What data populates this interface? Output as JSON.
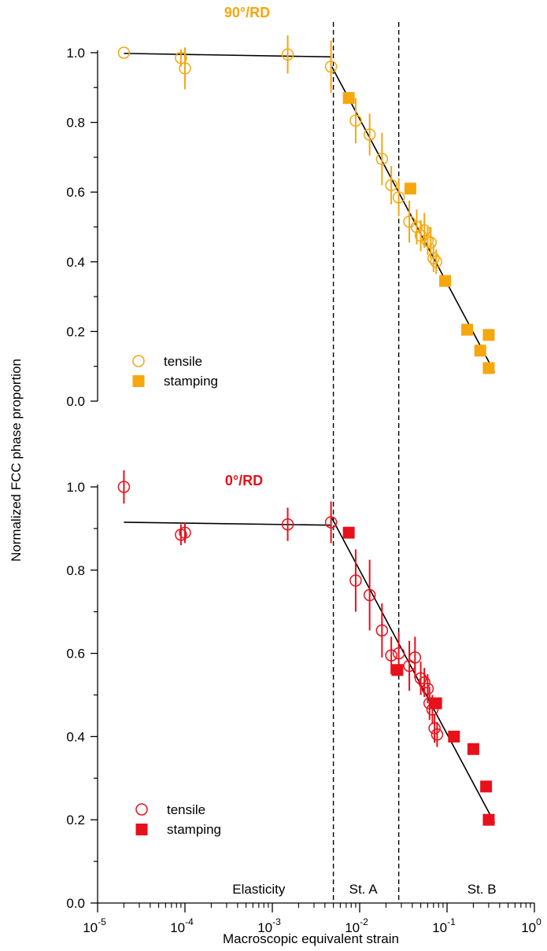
{
  "figure": {
    "ylabel": "Normalized FCC phase proportion",
    "xlabel": "Macroscopic equivalent strain",
    "x_scale": "log",
    "xlim": [
      1e-05,
      1
    ],
    "x_tick_labels": [
      {
        "base": "10",
        "exp": "-5"
      },
      {
        "base": "10",
        "exp": "-4"
      },
      {
        "base": "10",
        "exp": "-3"
      },
      {
        "base": "10",
        "exp": "-2"
      },
      {
        "base": "10",
        "exp": "-1"
      },
      {
        "base": "10",
        "exp": "0"
      }
    ],
    "y_tick_labels": [
      "0.0",
      "0.2",
      "0.4",
      "0.6",
      "0.8",
      "1.0"
    ],
    "vlines": [
      0.005,
      0.028
    ],
    "regions": [
      {
        "label": "Elasticity",
        "x": 0.0007
      },
      {
        "label": "St. A",
        "x": 0.011
      },
      {
        "label": "St. B",
        "x": 0.25
      }
    ],
    "colors": {
      "orange": "#f5a70e",
      "red": "#e8101a",
      "fit": "#000000"
    }
  },
  "chart_data": [
    {
      "type": "scatter",
      "title": "90°/RD",
      "title_color": "#f5a70e",
      "ylim": [
        0,
        1.0
      ],
      "grid": false,
      "legend_position": "lower-left",
      "series": [
        {
          "name": "tensile",
          "marker": "open-circle",
          "color": "#f5a70e",
          "points": [
            {
              "x": 2e-05,
              "y": 1.0,
              "err": 0.0
            },
            {
              "x": 9e-05,
              "y": 0.985,
              "err": 0.025
            },
            {
              "x": 0.0001,
              "y": 0.955,
              "err": 0.06
            },
            {
              "x": 0.0015,
              "y": 0.995,
              "err": 0.055
            },
            {
              "x": 0.0047,
              "y": 0.96,
              "err": 0.075
            },
            {
              "x": 0.009,
              "y": 0.805,
              "err": 0.065
            },
            {
              "x": 0.013,
              "y": 0.765,
              "err": 0.06
            },
            {
              "x": 0.018,
              "y": 0.695,
              "err": 0.075
            },
            {
              "x": 0.023,
              "y": 0.62,
              "err": 0.055
            },
            {
              "x": 0.028,
              "y": 0.585,
              "err": 0.055
            },
            {
              "x": 0.037,
              "y": 0.515,
              "err": 0.06
            },
            {
              "x": 0.045,
              "y": 0.5,
              "err": 0.05
            },
            {
              "x": 0.05,
              "y": 0.475,
              "err": 0.045
            },
            {
              "x": 0.055,
              "y": 0.49,
              "err": 0.05
            },
            {
              "x": 0.06,
              "y": 0.46,
              "err": 0.04
            },
            {
              "x": 0.065,
              "y": 0.455,
              "err": 0.045
            },
            {
              "x": 0.07,
              "y": 0.41,
              "err": 0.04
            },
            {
              "x": 0.075,
              "y": 0.4,
              "err": 0.035
            }
          ]
        },
        {
          "name": "stamping",
          "marker": "filled-square",
          "color": "#f5a70e",
          "points": [
            {
              "x": 0.0075,
              "y": 0.87
            },
            {
              "x": 0.038,
              "y": 0.61
            },
            {
              "x": 0.095,
              "y": 0.345
            },
            {
              "x": 0.17,
              "y": 0.205
            },
            {
              "x": 0.24,
              "y": 0.145
            },
            {
              "x": 0.3,
              "y": 0.19
            },
            {
              "x": 0.3,
              "y": 0.095
            }
          ]
        }
      ],
      "fit_lines": [
        [
          [
            2e-05,
            0.998
          ],
          [
            0.0048,
            0.988
          ]
        ],
        [
          [
            0.0048,
            0.96
          ],
          [
            0.35,
            0.082
          ]
        ]
      ]
    },
    {
      "type": "scatter",
      "title": "0°/RD",
      "title_color": "#e8101a",
      "ylim": [
        0,
        1.0
      ],
      "grid": false,
      "legend_position": "lower-left",
      "series": [
        {
          "name": "tensile",
          "marker": "open-circle",
          "color": "#e8101a",
          "points": [
            {
              "x": 2e-05,
              "y": 1.0,
              "err": 0.04
            },
            {
              "x": 9e-05,
              "y": 0.885,
              "err": 0.025
            },
            {
              "x": 0.0001,
              "y": 0.89,
              "err": 0.025
            },
            {
              "x": 0.0015,
              "y": 0.91,
              "err": 0.04
            },
            {
              "x": 0.0047,
              "y": 0.915,
              "err": 0.05
            },
            {
              "x": 0.009,
              "y": 0.775,
              "err": 0.075
            },
            {
              "x": 0.013,
              "y": 0.74,
              "err": 0.085
            },
            {
              "x": 0.018,
              "y": 0.655,
              "err": 0.065
            },
            {
              "x": 0.023,
              "y": 0.595,
              "err": 0.045
            },
            {
              "x": 0.028,
              "y": 0.6,
              "err": 0.05
            },
            {
              "x": 0.037,
              "y": 0.57,
              "err": 0.06
            },
            {
              "x": 0.043,
              "y": 0.59,
              "err": 0.05
            },
            {
              "x": 0.05,
              "y": 0.54,
              "err": 0.04
            },
            {
              "x": 0.055,
              "y": 0.53,
              "err": 0.035
            },
            {
              "x": 0.06,
              "y": 0.515,
              "err": 0.035
            },
            {
              "x": 0.063,
              "y": 0.48,
              "err": 0.04
            },
            {
              "x": 0.068,
              "y": 0.465,
              "err": 0.035
            },
            {
              "x": 0.072,
              "y": 0.42,
              "err": 0.035
            },
            {
              "x": 0.077,
              "y": 0.405,
              "err": 0.03
            }
          ]
        },
        {
          "name": "stamping",
          "marker": "filled-square",
          "color": "#e8101a",
          "points": [
            {
              "x": 0.0075,
              "y": 0.89
            },
            {
              "x": 0.027,
              "y": 0.56
            },
            {
              "x": 0.075,
              "y": 0.48
            },
            {
              "x": 0.12,
              "y": 0.4
            },
            {
              "x": 0.2,
              "y": 0.37
            },
            {
              "x": 0.28,
              "y": 0.28
            },
            {
              "x": 0.3,
              "y": 0.2
            }
          ]
        }
      ],
      "fit_lines": [
        [
          [
            2e-05,
            0.915
          ],
          [
            0.0048,
            0.908
          ]
        ],
        [
          [
            0.0048,
            0.925
          ],
          [
            0.35,
            0.192
          ]
        ]
      ]
    }
  ]
}
